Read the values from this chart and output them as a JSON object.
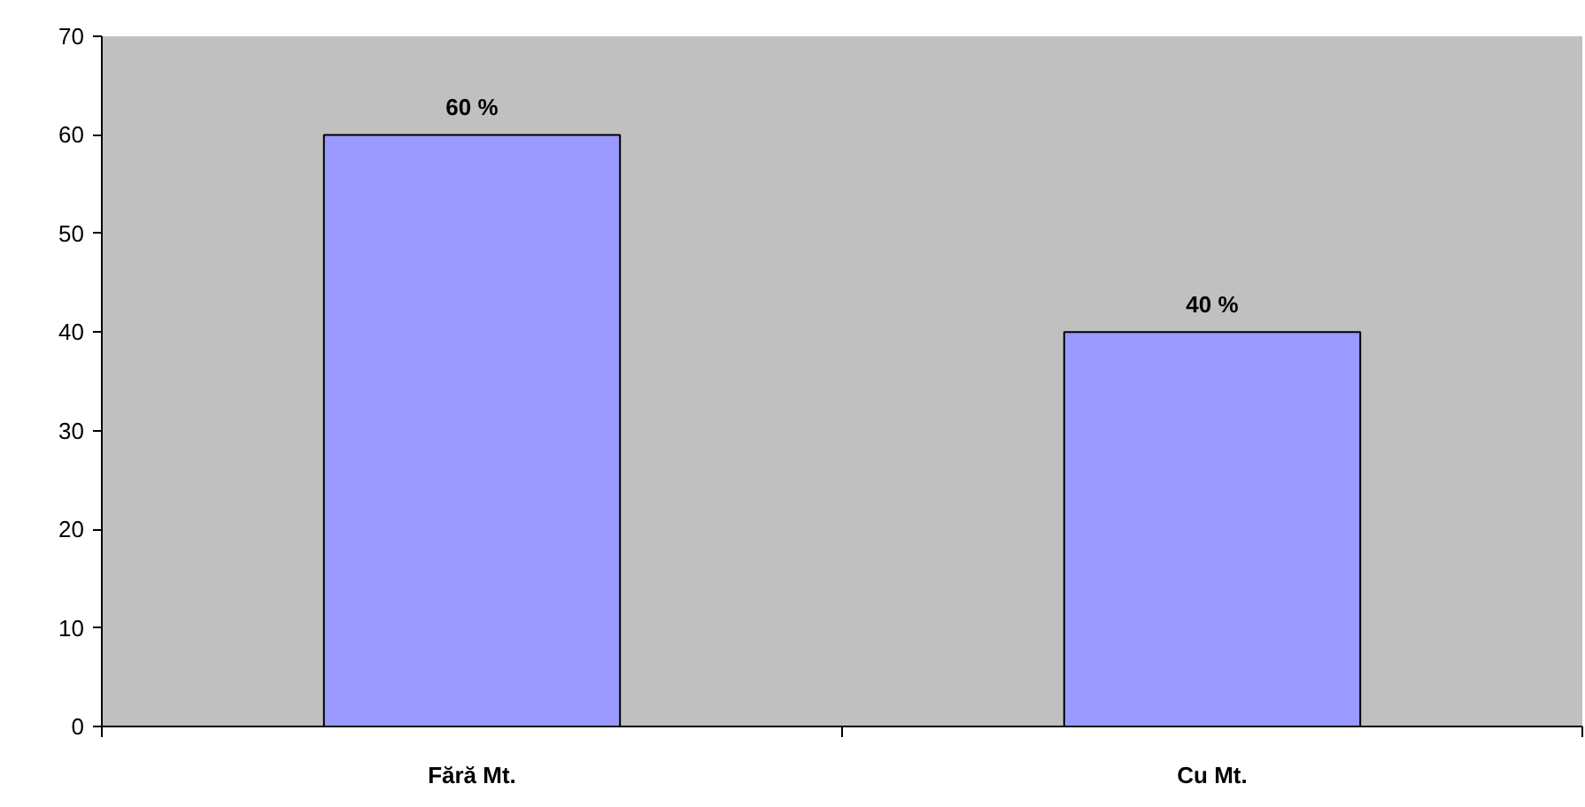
{
  "chart_data": {
    "type": "bar",
    "categories": [
      "Fără Mt.",
      "Cu Mt."
    ],
    "values": [
      60,
      40
    ],
    "color": "#9999ff",
    "value_labels": [
      "60 %",
      "40 %"
    ],
    "ylim": [
      0,
      70
    ],
    "yticks": [
      0,
      10,
      20,
      30,
      40,
      50,
      60,
      70
    ],
    "grid": false
  }
}
